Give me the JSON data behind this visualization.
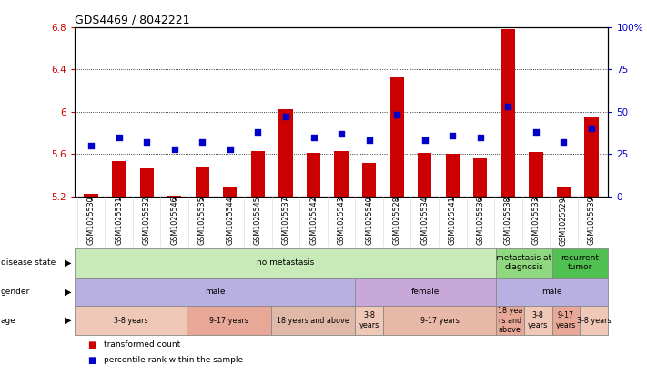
{
  "title": "GDS4469 / 8042221",
  "samples": [
    "GSM1025530",
    "GSM1025531",
    "GSM1025532",
    "GSM1025546",
    "GSM1025535",
    "GSM1025544",
    "GSM1025545",
    "GSM1025537",
    "GSM1025542",
    "GSM1025543",
    "GSM1025540",
    "GSM1025528",
    "GSM1025534",
    "GSM1025541",
    "GSM1025536",
    "GSM1025538",
    "GSM1025533",
    "GSM1025529",
    "GSM1025539"
  ],
  "red_values": [
    5.22,
    5.53,
    5.46,
    5.21,
    5.48,
    5.28,
    5.63,
    6.02,
    5.61,
    5.63,
    5.52,
    6.32,
    5.61,
    5.6,
    5.56,
    6.78,
    5.62,
    5.29,
    5.95
  ],
  "blue_values": [
    30,
    35,
    32,
    28,
    32,
    28,
    38,
    47,
    35,
    37,
    33,
    48,
    33,
    36,
    35,
    53,
    38,
    32,
    40
  ],
  "ylim_left": [
    5.2,
    6.8
  ],
  "ylim_right": [
    0,
    100
  ],
  "yticks_left": [
    5.2,
    5.6,
    6.0,
    6.4,
    6.8
  ],
  "yticks_right": [
    0,
    25,
    50,
    75,
    100
  ],
  "ytick_labels_left": [
    "5.2",
    "5.6",
    "6",
    "6.4",
    "6.8"
  ],
  "ytick_labels_right": [
    "0",
    "25",
    "50",
    "75",
    "100%"
  ],
  "disease_state_groups": [
    {
      "label": "no metastasis",
      "start": 0,
      "end": 15,
      "color": "#c8eab8"
    },
    {
      "label": "metastasis at\ndiagnosis",
      "start": 15,
      "end": 17,
      "color": "#90d880"
    },
    {
      "label": "recurrent\ntumor",
      "start": 17,
      "end": 19,
      "color": "#50c050"
    }
  ],
  "gender_groups": [
    {
      "label": "male",
      "start": 0,
      "end": 10,
      "color": "#b8b0e0"
    },
    {
      "label": "female",
      "start": 10,
      "end": 15,
      "color": "#c8a8d8"
    },
    {
      "label": "male",
      "start": 15,
      "end": 19,
      "color": "#b8b0e0"
    }
  ],
  "age_groups": [
    {
      "label": "3-8 years",
      "start": 0,
      "end": 4,
      "color": "#f0c8b8"
    },
    {
      "label": "9-17 years",
      "start": 4,
      "end": 7,
      "color": "#e8a898"
    },
    {
      "label": "18 years and above",
      "start": 7,
      "end": 10,
      "color": "#e0b8a8"
    },
    {
      "label": "3-8\nyears",
      "start": 10,
      "end": 11,
      "color": "#f0c8b8"
    },
    {
      "label": "9-17 years",
      "start": 11,
      "end": 15,
      "color": "#e8b8a8"
    },
    {
      "label": "18 yea\nrs and\nabove",
      "start": 15,
      "end": 16,
      "color": "#e8a898"
    },
    {
      "label": "3-8\nyears",
      "start": 16,
      "end": 17,
      "color": "#f0c8b8"
    },
    {
      "label": "9-17\nyears",
      "start": 17,
      "end": 18,
      "color": "#e8a898"
    },
    {
      "label": "3-8 years",
      "start": 18,
      "end": 19,
      "color": "#f0c8b8"
    }
  ],
  "red_color": "#cc0000",
  "blue_color": "#0000cc",
  "bar_width": 0.5,
  "marker_size": 25,
  "legend_red_label": "transformed count",
  "legend_blue_label": "percentile rank within the sample",
  "row_labels": [
    "disease state",
    "gender",
    "age"
  ],
  "background_color": "#ffffff",
  "plot_bg_color": "#ffffff"
}
